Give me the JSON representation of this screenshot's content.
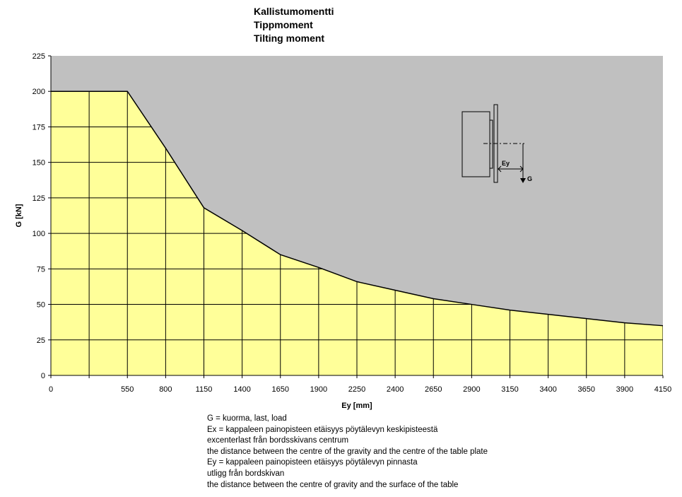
{
  "chart_data": {
    "type": "area",
    "title_lines": [
      "Kallistumomentti",
      "Tippmoment",
      "Tilting moment"
    ],
    "xlabel": "Ey [mm]",
    "ylabel": "G [kN]",
    "ylim": [
      0,
      225
    ],
    "y_ticks": [
      0,
      25,
      50,
      75,
      100,
      125,
      150,
      175,
      200,
      225
    ],
    "x_tick_labels": [
      "0",
      "",
      "550",
      "800",
      "1150",
      "1400",
      "1650",
      "1900",
      "2250",
      "2400",
      "2650",
      "2900",
      "3150",
      "3400",
      "3650",
      "3900",
      "4150"
    ],
    "grid": true,
    "series": [
      {
        "values": [
          200,
          200,
          200,
          160,
          118,
          102,
          85,
          76,
          66,
          60,
          54,
          50,
          46,
          43,
          40,
          37,
          35
        ]
      }
    ],
    "colors": {
      "fill": "#ffff99",
      "background": "#c0c0c0",
      "grid": "#000000",
      "line": "#000000"
    }
  },
  "inset": {
    "label_ey": "Ey",
    "label_g": "G"
  },
  "notes": [
    "G = kuorma, last, load",
    "Ex = kappaleen painopisteen etäisyys pöytälevyn keskipisteestä",
    "excenterlast från bordsskivans centrum",
    "the distance between the centre of the gravity and the centre of the table plate",
    "Ey = kappaleen painopisteen etäisyys pöytälevyn pinnasta",
    "utligg från bordskivan",
    "the distance between the centre of gravity and the surface of the table"
  ]
}
